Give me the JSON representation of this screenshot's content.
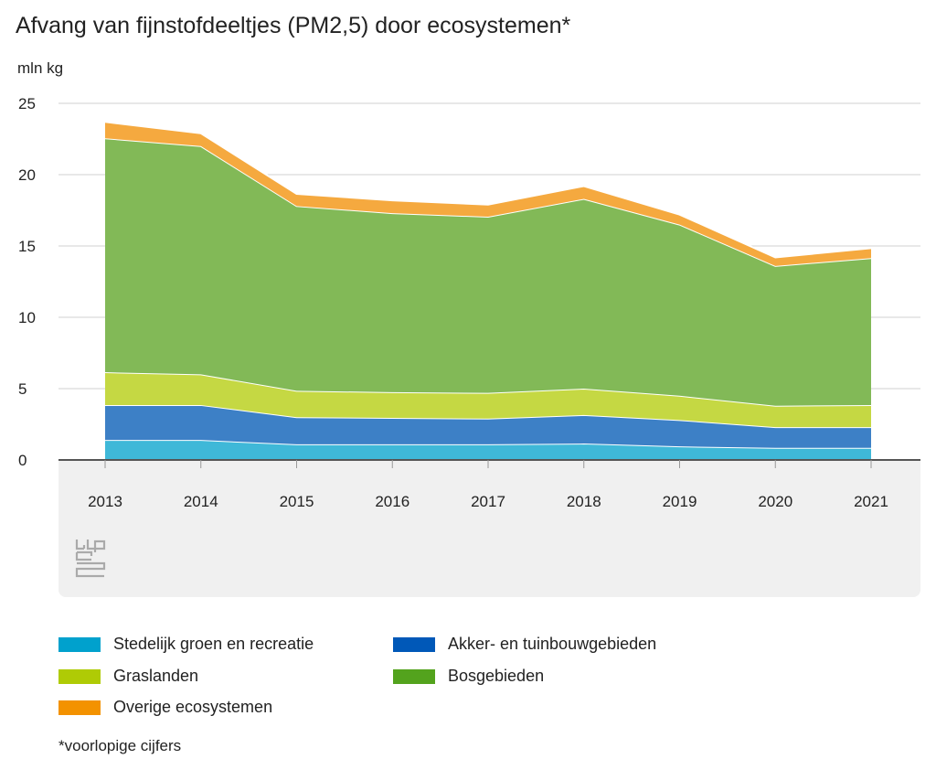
{
  "chart_data": {
    "type": "area",
    "stacked": true,
    "title": "Afvang van fijnstofdeeltjes (PM2,5) door ecosystemen*",
    "ylabel": "mln kg",
    "xlabel": "",
    "ylim": [
      0,
      25
    ],
    "yticks": [
      0,
      5,
      10,
      15,
      20,
      25
    ],
    "grid": true,
    "legend_position": "bottom",
    "categories": [
      "2013",
      "2014",
      "2015",
      "2016",
      "2017",
      "2018",
      "2019",
      "2020",
      "2021"
    ],
    "series": [
      {
        "name": "Stedelijk groen en recreatie",
        "color": "#3fb8d8",
        "legend_color": "#00a1cd",
        "values": [
          1.4,
          1.4,
          1.1,
          1.1,
          1.1,
          1.15,
          0.95,
          0.85,
          0.85
        ]
      },
      {
        "name": "Akker- en tuinbouwgebieden",
        "color": "#3d80c6",
        "legend_color": "#0058b8",
        "values": [
          2.45,
          2.45,
          1.9,
          1.85,
          1.8,
          2.0,
          1.85,
          1.45,
          1.45
        ]
      },
      {
        "name": "Graslanden",
        "color": "#c5d843",
        "legend_color": "#afcb05",
        "values": [
          2.3,
          2.15,
          1.85,
          1.8,
          1.8,
          1.85,
          1.7,
          1.5,
          1.55
        ]
      },
      {
        "name": "Bosgebieden",
        "color": "#82b957",
        "legend_color": "#53a31d",
        "values": [
          16.4,
          16.0,
          12.95,
          12.55,
          12.35,
          13.3,
          12.0,
          9.8,
          10.3
        ]
      },
      {
        "name": "Overige ecosystemen",
        "color": "#f5a93f",
        "legend_color": "#f39200",
        "values": [
          1.15,
          0.9,
          0.85,
          0.9,
          0.85,
          0.9,
          0.7,
          0.6,
          0.7
        ]
      }
    ],
    "footnote": "*voorlopige cijfers"
  }
}
